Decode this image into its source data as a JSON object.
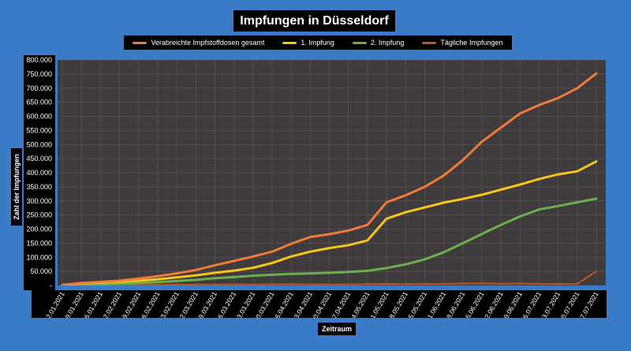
{
  "title": "Impfungen in Düsseldorf",
  "colors": {
    "background": "#3a7bc8",
    "plot_background": "#3f3b3c",
    "grid": "#5a5657"
  },
  "chart_data": {
    "type": "line",
    "title": "Impfungen in Düsseldorf",
    "xlabel": "Zeitraum",
    "ylabel": "Zahl der Impfungen",
    "ylim": [
      0,
      800000
    ],
    "grid": true,
    "legend_position": "top",
    "y_ticks": [
      "-",
      "50.000",
      "100.000",
      "150.000",
      "200.000",
      "250.000",
      "300.000",
      "350.000",
      "400.000",
      "450.000",
      "500.000",
      "550.000",
      "600.000",
      "650.000",
      "700.000",
      "750.000",
      "800.000"
    ],
    "x": [
      "12.01.2021",
      "19.01.2021",
      "26.01.2021",
      "02.02.2021",
      "09.02.2021",
      "16.02.2021",
      "23.02.2021",
      "02.03.2021",
      "09.03.2021",
      "16.03.2021",
      "23.03.2021",
      "30.03.2021",
      "06.04.2021",
      "13.04.2021",
      "20.04.2021",
      "27.04.2021",
      "04.05.2021",
      "11.05.2021",
      "18.05.2021",
      "25.05.2021",
      "01.06.2021",
      "08.06.2021",
      "15.06.2021",
      "22.06.2021",
      "29.06.2021",
      "06.07.2021",
      "13.07.2021",
      "20.07.2021",
      "27.07.2021"
    ],
    "series": [
      {
        "name": "Verabreichte Impfstoffdosen gesamt",
        "color": "#f07a3a",
        "values": [
          2000,
          9000,
          13000,
          17000,
          25000,
          33000,
          43000,
          55000,
          72000,
          87000,
          103000,
          120000,
          148000,
          172000,
          182000,
          195000,
          215000,
          295000,
          320000,
          350000,
          390000,
          445000,
          510000,
          560000,
          610000,
          640000,
          665000,
          700000,
          752000
        ]
      },
      {
        "name": "1. Impfung",
        "color": "#f5c518",
        "values": [
          2000,
          7000,
          10000,
          13000,
          17000,
          22000,
          29000,
          36000,
          45000,
          53000,
          63000,
          80000,
          103000,
          120000,
          133000,
          143000,
          160000,
          237000,
          260000,
          277000,
          294000,
          307000,
          322000,
          340000,
          358000,
          378000,
          394000,
          405000,
          440000
        ]
      },
      {
        "name": "2. Impfung",
        "color": "#6ab04c",
        "values": [
          0,
          2000,
          4000,
          6000,
          9000,
          12000,
          16000,
          20000,
          26000,
          30000,
          35000,
          38000,
          41000,
          43000,
          45000,
          48000,
          52000,
          62000,
          75000,
          93000,
          118000,
          150000,
          183000,
          215000,
          245000,
          270000,
          282000,
          295000,
          308000
        ]
      },
      {
        "name": "Tägliche Impfungen",
        "color": "#c0561a",
        "values": [
          1000,
          1500,
          1000,
          2000,
          2000,
          2500,
          3000,
          3500,
          3500,
          4000,
          3000,
          4500,
          5000,
          4000,
          3500,
          4000,
          5000,
          6000,
          5000,
          5500,
          6000,
          7000,
          7500,
          6500,
          7000,
          6000,
          5500,
          6000,
          50000
        ]
      }
    ]
  }
}
